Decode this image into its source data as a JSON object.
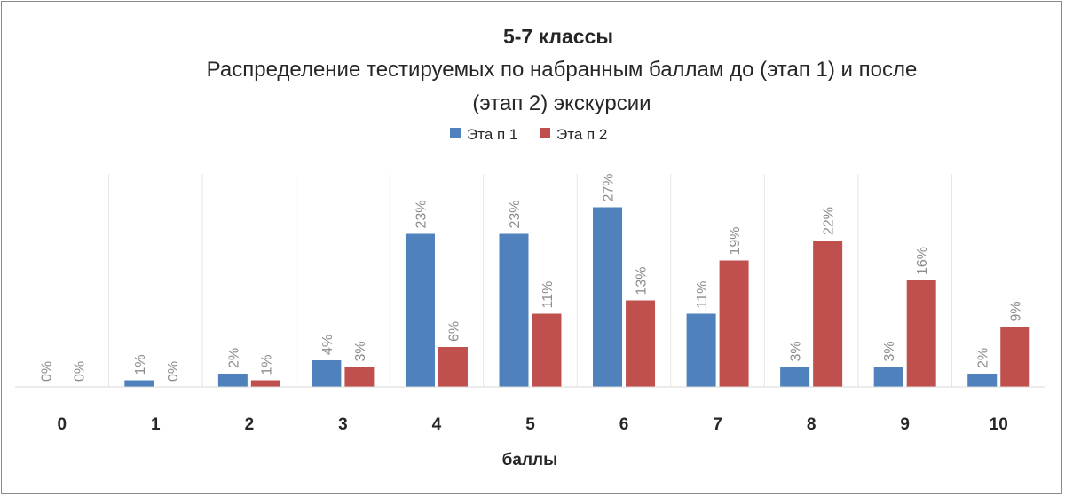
{
  "chart_data": {
    "type": "bar",
    "title": "5-7 классы",
    "subtitle_line1": "Распределение тестируемых по набранным баллам до (этап 1) и после",
    "subtitle_line2": "(этап 2) экскурсии",
    "xlabel": "баллы",
    "ylabel": "",
    "ylim": [
      0,
      32
    ],
    "grid": "vertical",
    "legend_position": "top",
    "categories": [
      "0",
      "1",
      "2",
      "3",
      "4",
      "5",
      "6",
      "7",
      "8",
      "9",
      "10"
    ],
    "series": [
      {
        "name": "Эта п 1",
        "color": "#4F81BD",
        "values": [
          0,
          1,
          2,
          4,
          23,
          23,
          27,
          11,
          3,
          3,
          2
        ],
        "labels": [
          "0%",
          "1%",
          "2%",
          "4%",
          "23%",
          "23%",
          "27%",
          "11%",
          "3%",
          "3%",
          "2%"
        ]
      },
      {
        "name": "Эта п 2",
        "color": "#C0504D",
        "values": [
          0,
          0,
          1,
          3,
          6,
          11,
          13,
          19,
          22,
          16,
          9
        ],
        "labels": [
          "0%",
          "0%",
          "1%",
          "3%",
          "6%",
          "11%",
          "13%",
          "19%",
          "22%",
          "16%",
          "9%"
        ]
      }
    ]
  }
}
